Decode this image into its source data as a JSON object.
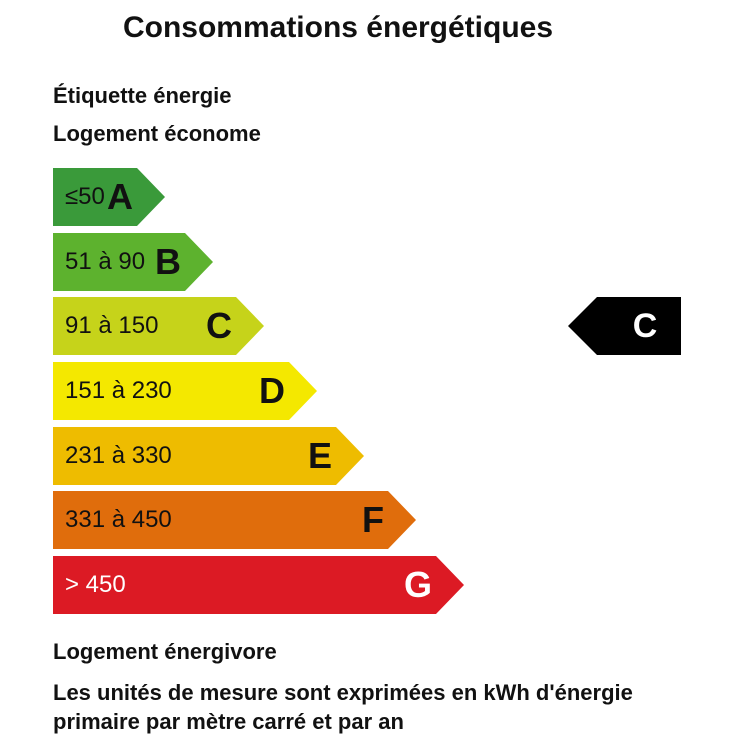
{
  "title": "Consommations énergétiques",
  "label_heading": "Étiquette énergie",
  "good_label": "Logement économe",
  "bad_label": "Logement énergivore",
  "note_lines": [
    "Les unités de mesure sont exprimées en kWh d'énergie",
    "primaire par mètre carré et par an"
  ],
  "classes": [
    {
      "letter": "A",
      "range": "≤50",
      "color": "#3a9a3a"
    },
    {
      "letter": "B",
      "range": "51 à 90",
      "color": "#5db22e"
    },
    {
      "letter": "C",
      "range": "91 à 150",
      "color": "#c6d31a"
    },
    {
      "letter": "D",
      "range": "151 à 230",
      "color": "#f4e800"
    },
    {
      "letter": "E",
      "range": "231 à 330",
      "color": "#eebc00"
    },
    {
      "letter": "F",
      "range": "331 à 450",
      "color": "#e06d0c"
    },
    {
      "letter": "G",
      "range": "> 450",
      "color": "#dc1a24"
    }
  ],
  "current_class": "C",
  "indicator_color": "#000000"
}
